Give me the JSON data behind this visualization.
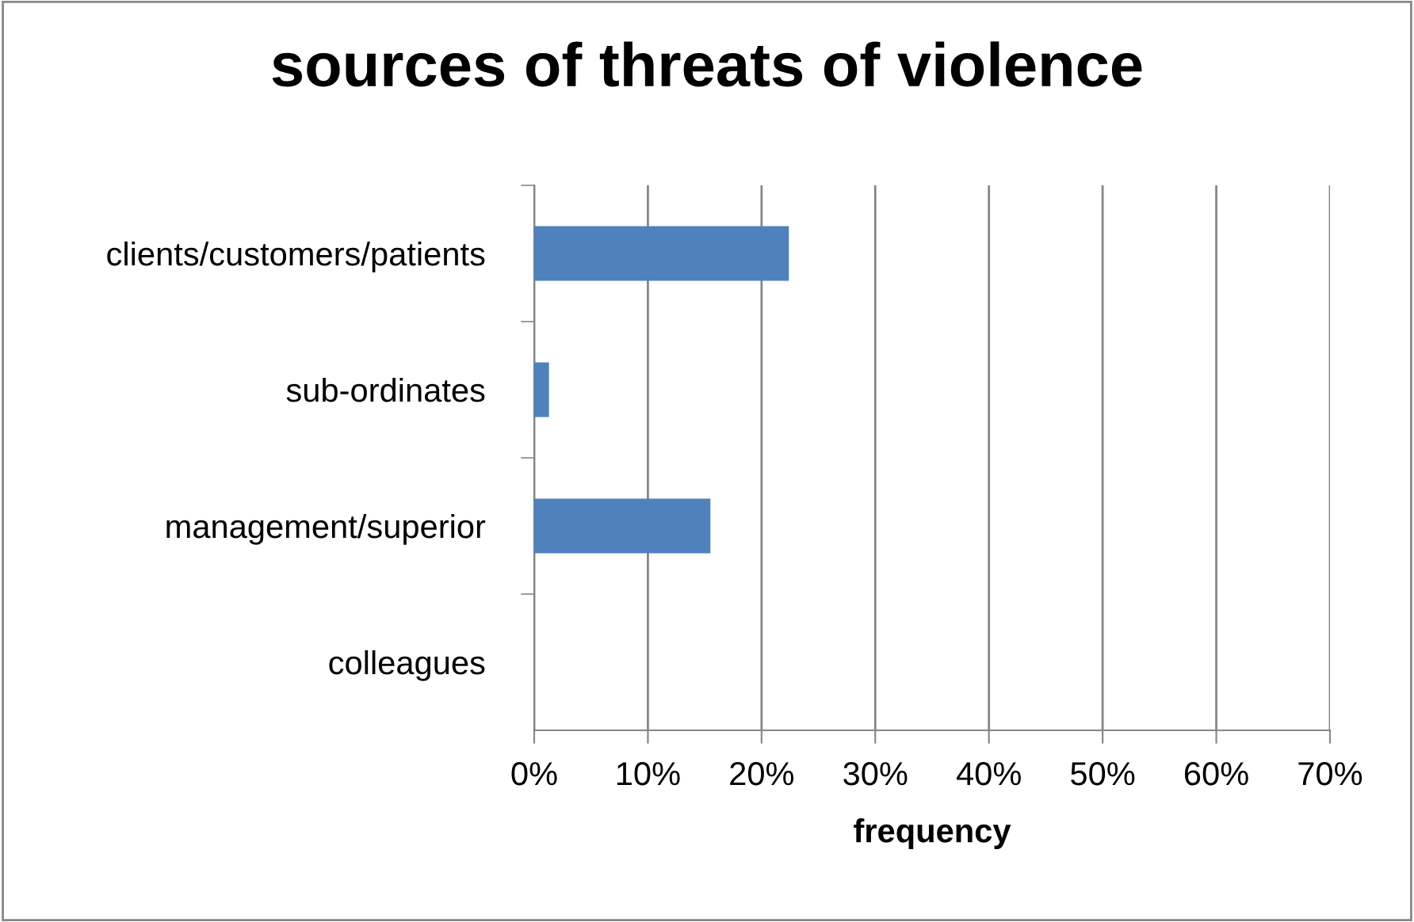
{
  "chart_data": {
    "type": "bar",
    "orientation": "horizontal",
    "title": "sources of threats of violence",
    "xlabel": "frequency",
    "categories": [
      "clients/customers/patients",
      "sub-ordinates",
      "management/superior",
      "colleagues"
    ],
    "values": [
      22.4,
      1.3,
      15.5,
      0
    ],
    "color": "#4f81bd",
    "xlim": [
      0,
      70
    ],
    "xticks": [
      {
        "value": 0,
        "label": "0%"
      },
      {
        "value": 10,
        "label": "10%"
      },
      {
        "value": 20,
        "label": "20%"
      },
      {
        "value": 30,
        "label": "30%"
      },
      {
        "value": 40,
        "label": "40%"
      },
      {
        "value": 50,
        "label": "50%"
      },
      {
        "value": 60,
        "label": "60%"
      },
      {
        "value": 70,
        "label": "70%"
      }
    ],
    "grid": "x",
    "legend": false
  }
}
